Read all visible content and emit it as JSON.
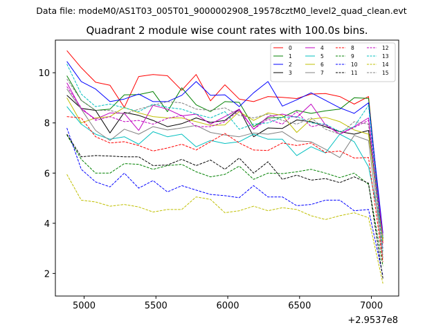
{
  "chart_data": {
    "type": "line",
    "suptitle": "Data file: modeM0/AS1T03_005T01_9000002908_19578cztM0_level2_quad_clean.evt",
    "title": "Quadrant 2 module wise count rates with 100.0s bins.",
    "xlabel": "",
    "ylabel": "",
    "x_offset_label": "+2.9537e8",
    "xlim": [
      4800,
      7190
    ],
    "ylim": [
      1.1,
      11.3
    ],
    "xticks": [
      5000,
      5500,
      6000,
      6500,
      7000
    ],
    "yticks": [
      2,
      4,
      6,
      8,
      10
    ],
    "x": [
      4880,
      4980,
      5080,
      5180,
      5280,
      5380,
      5480,
      5580,
      5680,
      5780,
      5880,
      5980,
      6080,
      6180,
      6280,
      6380,
      6480,
      6580,
      6680,
      6780,
      6880,
      6980,
      7080
    ],
    "series": [
      {
        "name": "0",
        "color": "#ff0000",
        "dash": "solid",
        "values": [
          10.88,
          10.2,
          9.62,
          9.5,
          8.62,
          9.85,
          9.93,
          9.88,
          9.3,
          9.93,
          8.88,
          9.52,
          8.95,
          8.85,
          9.05,
          9.02,
          8.97,
          9.15,
          9.17,
          9.05,
          8.75,
          9.05,
          3.2
        ]
      },
      {
        "name": "1",
        "color": "#008000",
        "dash": "solid",
        "values": [
          9.88,
          8.9,
          8.5,
          8.55,
          9.12,
          9.13,
          9.25,
          8.45,
          9.4,
          8.72,
          8.45,
          8.85,
          8.82,
          7.85,
          8.2,
          8.22,
          8.5,
          8.38,
          8.48,
          8.55,
          9.0,
          8.98,
          3.3
        ]
      },
      {
        "name": "2",
        "color": "#0000ff",
        "dash": "solid",
        "values": [
          10.45,
          9.65,
          9.35,
          8.85,
          8.95,
          9.15,
          8.85,
          8.85,
          9.1,
          9.65,
          9.1,
          9.12,
          8.65,
          9.2,
          9.65,
          8.67,
          8.92,
          9.2,
          8.9,
          8.6,
          8.38,
          8.8,
          3.6
        ]
      },
      {
        "name": "3",
        "color": "#000000",
        "dash": "solid",
        "values": [
          9.1,
          8.58,
          8.5,
          7.6,
          8.42,
          8.3,
          8.1,
          7.85,
          7.97,
          8.2,
          8.02,
          8.1,
          8.55,
          7.45,
          7.8,
          7.78,
          8.12,
          8.05,
          7.85,
          7.65,
          7.55,
          7.7,
          3.4
        ]
      },
      {
        "name": "4",
        "color": "#c000c0",
        "dash": "solid",
        "values": [
          9.6,
          8.55,
          8.15,
          8.4,
          8.38,
          7.7,
          8.7,
          8.55,
          8.28,
          8.35,
          7.95,
          8.25,
          8.55,
          7.75,
          8.25,
          8.35,
          8.22,
          8.75,
          7.92,
          7.55,
          7.85,
          8.2,
          3.5
        ]
      },
      {
        "name": "5",
        "color": "#00bfbf",
        "dash": "solid",
        "values": [
          8.65,
          7.95,
          7.55,
          7.35,
          7.45,
          7.15,
          7.65,
          7.45,
          7.55,
          7.05,
          7.3,
          7.18,
          7.25,
          7.55,
          7.35,
          7.35,
          6.7,
          7.05,
          6.8,
          7.55,
          7.25,
          6.25,
          3.45
        ]
      },
      {
        "name": "6",
        "color": "#bfbf00",
        "dash": "solid",
        "values": [
          9.0,
          8.0,
          8.2,
          8.25,
          8.62,
          8.4,
          8.25,
          8.2,
          8.2,
          8.05,
          7.9,
          7.92,
          8.45,
          8.1,
          8.4,
          8.3,
          7.62,
          8.15,
          8.22,
          8.05,
          7.72,
          7.55,
          3.3
        ]
      },
      {
        "name": "7",
        "color": "#808080",
        "dash": "solid",
        "values": [
          9.35,
          8.55,
          7.7,
          7.3,
          7.75,
          7.55,
          7.85,
          7.72,
          7.8,
          7.9,
          7.62,
          7.52,
          7.45,
          7.6,
          7.55,
          7.65,
          7.28,
          7.25,
          6.95,
          6.62,
          7.5,
          7.3,
          2.6
        ]
      },
      {
        "name": "8",
        "color": "#ff0000",
        "dash": "dashed",
        "values": [
          8.25,
          8.2,
          7.45,
          7.2,
          7.25,
          7.1,
          6.88,
          7.0,
          7.15,
          6.92,
          7.25,
          7.58,
          7.2,
          6.92,
          6.9,
          7.2,
          7.1,
          7.2,
          6.82,
          6.88,
          6.6,
          6.62,
          2.45
        ]
      },
      {
        "name": "9",
        "color": "#008000",
        "dash": "dashed",
        "values": [
          7.52,
          6.55,
          6.0,
          6.0,
          6.38,
          6.35,
          6.15,
          6.3,
          6.35,
          6.05,
          5.85,
          5.95,
          6.28,
          5.75,
          6.0,
          5.98,
          6.05,
          6.15,
          6.0,
          5.82,
          6.0,
          5.55,
          2.3
        ]
      },
      {
        "name": "10",
        "color": "#0000ff",
        "dash": "dashed",
        "values": [
          7.8,
          6.15,
          5.65,
          5.45,
          6.0,
          5.4,
          5.7,
          5.25,
          5.5,
          5.32,
          5.15,
          5.1,
          5.02,
          5.5,
          5.05,
          5.05,
          4.7,
          4.75,
          4.92,
          4.92,
          4.5,
          4.55,
          1.9
        ]
      },
      {
        "name": "11",
        "color": "#000000",
        "dash": "dashed",
        "values": [
          7.55,
          6.65,
          6.7,
          6.68,
          6.65,
          6.65,
          6.3,
          6.32,
          6.55,
          6.3,
          6.52,
          6.15,
          6.6,
          6.0,
          6.45,
          5.75,
          5.92,
          5.72,
          5.78,
          5.62,
          5.85,
          5.6,
          1.8
        ]
      },
      {
        "name": "12",
        "color": "#c000c0",
        "dash": "dashed",
        "values": [
          9.45,
          8.6,
          8.1,
          8.25,
          8.05,
          8.1,
          7.95,
          8.18,
          8.3,
          7.85,
          7.85,
          8.05,
          8.5,
          7.75,
          8.15,
          7.95,
          8.45,
          7.85,
          7.95,
          7.55,
          7.82,
          8.1,
          3.0
        ]
      },
      {
        "name": "13",
        "color": "#00bfbf",
        "dash": "dashed",
        "values": [
          10.35,
          9.15,
          8.65,
          8.75,
          8.6,
          8.45,
          8.75,
          8.62,
          8.55,
          8.35,
          8.2,
          8.45,
          7.75,
          7.95,
          8.0,
          8.22,
          8.25,
          8.0,
          7.95,
          7.65,
          7.85,
          8.7,
          2.9
        ]
      },
      {
        "name": "14",
        "color": "#bfbf00",
        "dash": "dashed",
        "values": [
          5.95,
          4.92,
          4.85,
          4.68,
          4.75,
          4.65,
          4.45,
          4.55,
          4.55,
          5.05,
          4.95,
          4.42,
          4.5,
          4.68,
          4.5,
          4.62,
          4.55,
          4.3,
          4.15,
          4.3,
          4.42,
          4.22,
          1.6
        ]
      },
      {
        "name": "15",
        "color": "#808080",
        "dash": "dashed",
        "values": [
          9.75,
          8.9,
          8.5,
          8.5,
          8.35,
          8.55,
          8.7,
          8.85,
          8.8,
          8.55,
          8.5,
          8.6,
          8.3,
          8.2,
          8.35,
          8.1,
          7.95,
          8.2,
          7.75,
          7.55,
          8.05,
          7.95,
          2.75
        ]
      }
    ]
  }
}
